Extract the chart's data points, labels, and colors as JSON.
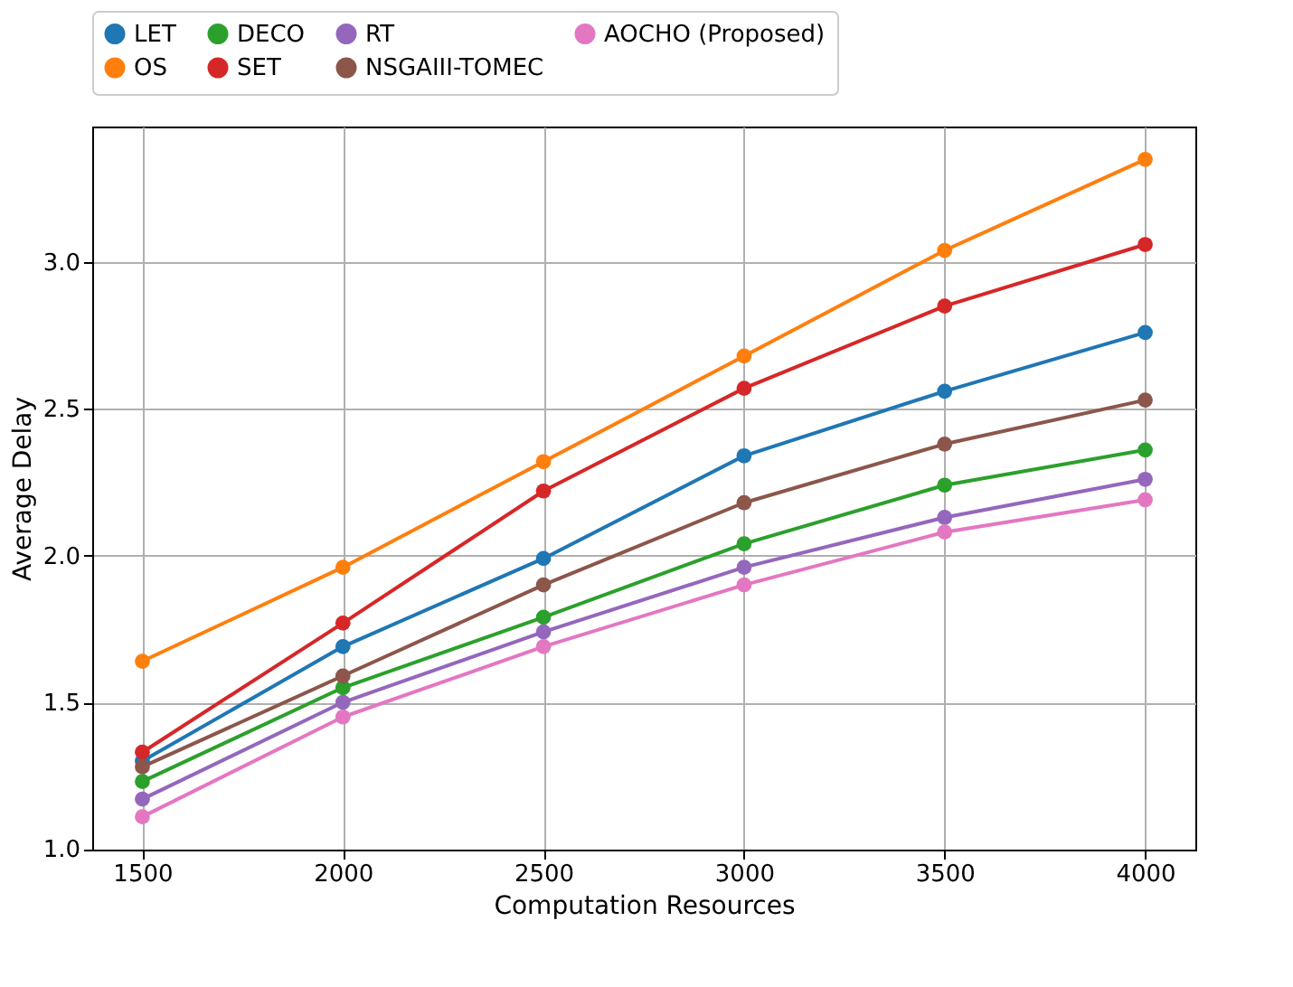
{
  "chart_data": {
    "type": "line",
    "xlabel": "Computation Resources",
    "ylabel": "Average Delay",
    "x": [
      1500,
      2000,
      2500,
      3000,
      3500,
      4000
    ],
    "xlim": [
      1375,
      4125
    ],
    "xticks": [
      1500,
      2000,
      2500,
      3000,
      3500,
      4000
    ],
    "ylim": [
      0.998,
      3.462
    ],
    "yticks": [
      {
        "value": 1.0,
        "label": "1.0"
      },
      1.5,
      {
        "value": 2.0,
        "label": "2.0"
      },
      2.5,
      {
        "value": 3.0,
        "label": "3.0"
      }
    ],
    "grid": true,
    "legend": "top",
    "marker": "circle",
    "line_style": "solid",
    "series": [
      {
        "name": "LET",
        "color": "#1f77b4",
        "values": [
          1.3,
          1.69,
          1.99,
          2.34,
          2.56,
          2.76
        ]
      },
      {
        "name": "OS",
        "color": "#ff7f0e",
        "values": [
          1.64,
          1.96,
          2.32,
          2.68,
          3.04,
          3.35
        ]
      },
      {
        "name": "DECO",
        "color": "#2ca02c",
        "values": [
          1.23,
          1.55,
          1.79,
          2.04,
          2.24,
          2.36
        ]
      },
      {
        "name": "SET",
        "color": "#d62728",
        "values": [
          1.33,
          1.77,
          2.22,
          2.57,
          2.85,
          3.06
        ]
      },
      {
        "name": "RT",
        "color": "#9467bd",
        "values": [
          1.17,
          1.5,
          1.74,
          1.96,
          2.13,
          2.26
        ]
      },
      {
        "name": "NSGAIII-TOMEC",
        "color": "#8c564b",
        "values": [
          1.28,
          1.59,
          1.9,
          2.18,
          2.38,
          2.53
        ]
      },
      {
        "name": "AOCHO (Proposed)",
        "color": "#e377c2",
        "values": [
          1.11,
          1.45,
          1.69,
          1.9,
          2.08,
          2.19
        ]
      }
    ]
  }
}
